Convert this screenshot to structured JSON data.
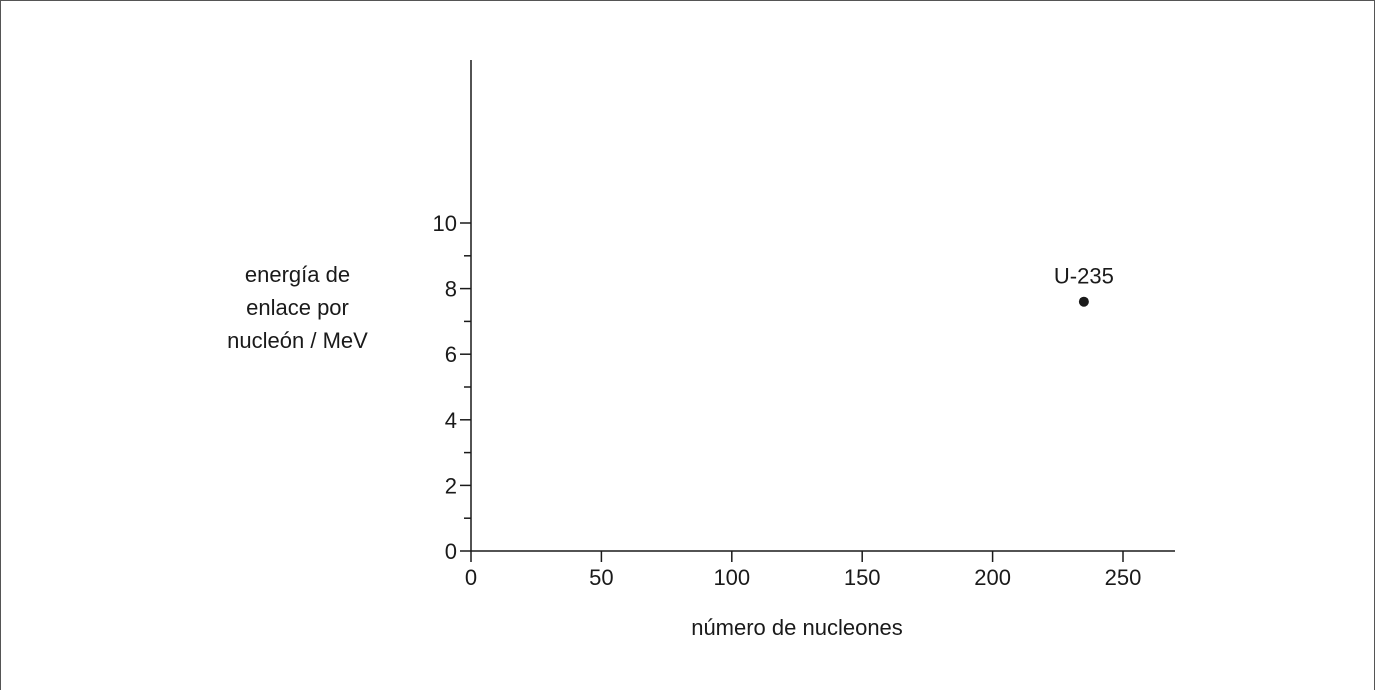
{
  "chart_data": {
    "type": "scatter",
    "title": "",
    "xlabel": "número de nucleones",
    "ylabel_lines": [
      "energía de",
      "enlace por",
      "nucleón / MeV"
    ],
    "xlim": [
      0,
      270
    ],
    "ylim": [
      0,
      15
    ],
    "x_ticks": [
      0,
      50,
      100,
      150,
      200,
      250
    ],
    "y_ticks_labeled": [
      0,
      2,
      4,
      6,
      8,
      10
    ],
    "y_ticks_minor": [
      1,
      3,
      5,
      7,
      9
    ],
    "grid": false,
    "points": [
      {
        "x": 235,
        "y": 7.6,
        "label": "U-235"
      }
    ]
  }
}
